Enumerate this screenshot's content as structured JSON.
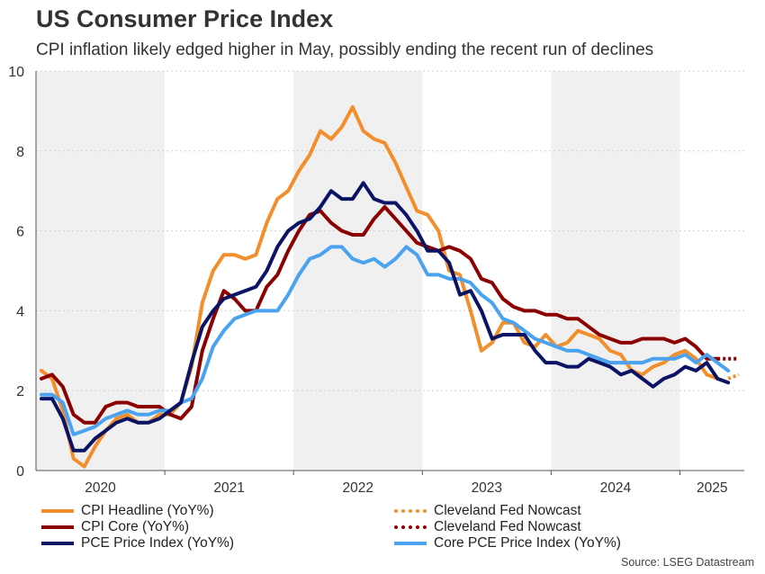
{
  "header": {
    "title": "US Consumer Price Index",
    "subtitle": "CPI inflation likely edged higher in May, possibly ending the recent run of declines"
  },
  "source": "Source: LSEG Datastream",
  "colors": {
    "cpi_headline": "#f28e2b",
    "cpi_core": "#8b0000",
    "pce": "#0b1464",
    "core_pce": "#4ba3f0",
    "shade": "#f0f0f0"
  },
  "legend": [
    {
      "label": "CPI Headline (YoY%)",
      "color": "#f28e2b",
      "style": "solid"
    },
    {
      "label": "Cleveland Fed Nowcast",
      "color": "#f28e2b",
      "style": "dotted"
    },
    {
      "label": "CPI Core (YoY%)",
      "color": "#8b0000",
      "style": "solid"
    },
    {
      "label": "Cleveland Fed Nowcast",
      "color": "#8b0000",
      "style": "dotted"
    },
    {
      "label": "PCE Price Index (YoY%)",
      "color": "#0b1464",
      "style": "solid"
    },
    {
      "label": "Core PCE Price Index (YoY%)",
      "color": "#4ba3f0",
      "style": "solid"
    }
  ],
  "chart_data": {
    "type": "line",
    "x_unit": "month",
    "x_start": "2020-01",
    "xlim": [
      "2020-01",
      "2025-07"
    ],
    "ylim": [
      0,
      10
    ],
    "yticks": [
      0,
      2,
      4,
      6,
      8,
      10
    ],
    "x_tick_labels": [
      "2020",
      "2021",
      "2022",
      "2023",
      "2024",
      "2025"
    ],
    "shaded_years": [
      "2020",
      "2022",
      "2024"
    ],
    "grid": "horizontal dotted",
    "series": [
      {
        "name": "CPI Headline (YoY%)",
        "key": "cpi_headline",
        "style": "solid",
        "values": [
          2.5,
          2.3,
          1.5,
          0.3,
          0.1,
          0.6,
          1.0,
          1.3,
          1.4,
          1.2,
          1.2,
          1.4,
          1.4,
          1.7,
          2.6,
          4.2,
          5.0,
          5.4,
          5.4,
          5.3,
          5.4,
          6.2,
          6.8,
          7.0,
          7.5,
          7.9,
          8.5,
          8.3,
          8.6,
          9.1,
          8.5,
          8.3,
          8.2,
          7.7,
          7.1,
          6.5,
          6.4,
          6.0,
          5.0,
          4.9,
          4.0,
          3.0,
          3.2,
          3.7,
          3.7,
          3.2,
          3.1,
          3.4,
          3.1,
          3.2,
          3.5,
          3.4,
          3.3,
          3.0,
          2.9,
          2.5,
          2.4,
          2.6,
          2.7,
          2.9,
          3.0,
          2.8,
          2.4,
          2.3
        ]
      },
      {
        "name": "CPI Core (YoY%)",
        "key": "cpi_core",
        "style": "solid",
        "values": [
          2.3,
          2.4,
          2.1,
          1.4,
          1.2,
          1.2,
          1.6,
          1.7,
          1.7,
          1.6,
          1.6,
          1.6,
          1.4,
          1.3,
          1.6,
          3.0,
          3.8,
          4.5,
          4.3,
          4.0,
          4.0,
          4.6,
          4.9,
          5.5,
          6.0,
          6.4,
          6.5,
          6.2,
          6.0,
          5.9,
          5.9,
          6.3,
          6.6,
          6.3,
          6.0,
          5.7,
          5.6,
          5.5,
          5.6,
          5.5,
          5.3,
          4.8,
          4.7,
          4.3,
          4.1,
          4.0,
          4.0,
          3.9,
          3.9,
          3.8,
          3.8,
          3.6,
          3.4,
          3.3,
          3.2,
          3.2,
          3.3,
          3.3,
          3.3,
          3.2,
          3.3,
          3.1,
          2.8,
          2.8
        ]
      },
      {
        "name": "Cleveland Fed Nowcast",
        "key": "cpi_headline",
        "style": "dotted",
        "x_offset": 64,
        "values": [
          2.3,
          2.4
        ]
      },
      {
        "name": "Cleveland Fed Nowcast",
        "key": "cpi_core",
        "style": "dotted",
        "x_offset": 63,
        "values": [
          2.8,
          2.8,
          2.8
        ]
      },
      {
        "name": "PCE Price Index (YoY%)",
        "key": "pce",
        "style": "solid",
        "values": [
          1.8,
          1.8,
          1.3,
          0.5,
          0.5,
          0.8,
          1.0,
          1.2,
          1.3,
          1.2,
          1.2,
          1.3,
          1.5,
          1.7,
          2.7,
          3.6,
          4.0,
          4.3,
          4.4,
          4.5,
          4.6,
          5.0,
          5.6,
          6.0,
          6.2,
          6.3,
          6.6,
          7.0,
          6.8,
          6.8,
          7.2,
          6.8,
          6.7,
          6.7,
          6.4,
          6.0,
          5.5,
          5.5,
          5.2,
          4.4,
          4.5,
          4.0,
          3.3,
          3.4,
          3.4,
          3.4,
          3.0,
          2.7,
          2.7,
          2.6,
          2.6,
          2.8,
          2.7,
          2.6,
          2.4,
          2.5,
          2.3,
          2.1,
          2.3,
          2.4,
          2.6,
          2.5,
          2.7,
          2.3,
          2.2
        ]
      },
      {
        "name": "Core PCE Price Index (YoY%)",
        "key": "core_pce",
        "style": "solid",
        "values": [
          1.9,
          1.9,
          1.7,
          0.9,
          1.0,
          1.1,
          1.3,
          1.4,
          1.5,
          1.4,
          1.4,
          1.5,
          1.5,
          1.7,
          1.8,
          2.3,
          3.1,
          3.5,
          3.8,
          3.9,
          4.0,
          4.0,
          4.0,
          4.4,
          4.9,
          5.3,
          5.4,
          5.6,
          5.6,
          5.3,
          5.2,
          5.3,
          5.1,
          5.3,
          5.6,
          5.4,
          4.9,
          4.9,
          4.8,
          4.8,
          4.7,
          4.4,
          4.2,
          3.8,
          3.7,
          3.5,
          3.3,
          3.2,
          3.1,
          3.0,
          3.0,
          2.9,
          2.8,
          2.7,
          2.7,
          2.7,
          2.7,
          2.8,
          2.8,
          2.8,
          2.9,
          2.7,
          2.9,
          2.7,
          2.5
        ]
      }
    ]
  }
}
